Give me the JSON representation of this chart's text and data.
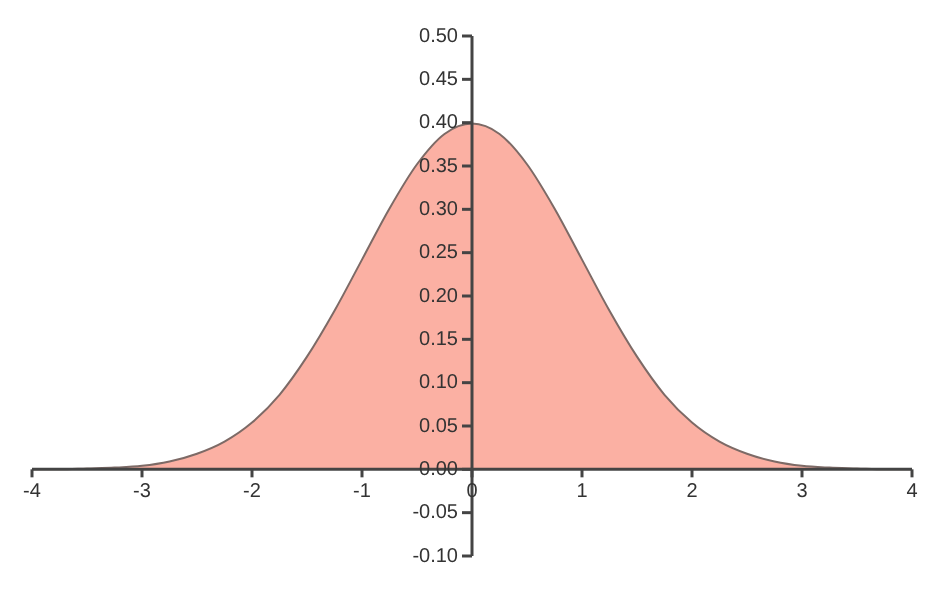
{
  "chart_data": {
    "type": "area",
    "x": [
      -4,
      -3.75,
      -3.5,
      -3.25,
      -3,
      -2.75,
      -2.5,
      -2.25,
      -2,
      -1.75,
      -1.5,
      -1.25,
      -1,
      -0.75,
      -0.5,
      -0.25,
      0,
      0.25,
      0.5,
      0.75,
      1,
      1.25,
      1.5,
      1.75,
      2,
      2.25,
      2.5,
      2.75,
      3,
      3.25,
      3.5,
      3.75,
      4
    ],
    "series": [
      {
        "color": "#fbb0a3",
        "values": [
          0.0,
          0.0,
          0.001,
          0.002,
          0.004,
          0.009,
          0.018,
          0.032,
          0.054,
          0.086,
          0.13,
          0.183,
          0.242,
          0.301,
          0.352,
          0.387,
          0.399,
          0.387,
          0.352,
          0.301,
          0.242,
          0.183,
          0.13,
          0.086,
          0.054,
          0.032,
          0.018,
          0.009,
          0.004,
          0.002,
          0.001,
          0.0,
          0.0
        ]
      }
    ],
    "xlim": [
      -4,
      4
    ],
    "xticks": [
      -4,
      -3,
      -2,
      -1,
      0,
      1,
      2,
      3,
      4
    ],
    "ylim": [
      -0.1,
      0.5
    ],
    "yticks": [
      {
        "value": -0.1,
        "label": "-0.10"
      },
      {
        "value": -0.05,
        "label": "-0.05"
      },
      {
        "value": 0,
        "label": "0.00"
      },
      {
        "value": 0.05,
        "label": "0.05"
      },
      {
        "value": 0.1,
        "label": "0.10"
      },
      {
        "value": 0.15,
        "label": "0.15"
      },
      {
        "value": 0.2,
        "label": "0.20"
      },
      {
        "value": 0.25,
        "label": "0.25"
      },
      {
        "value": 0.3,
        "label": "0.30"
      },
      {
        "value": 0.35,
        "label": "0.35"
      },
      {
        "value": 0.4,
        "label": "0.40"
      },
      {
        "value": 0.45,
        "label": "0.45"
      },
      {
        "value": 0.5,
        "label": "0.50"
      }
    ],
    "grid": false,
    "legend": false,
    "marker": "none"
  }
}
